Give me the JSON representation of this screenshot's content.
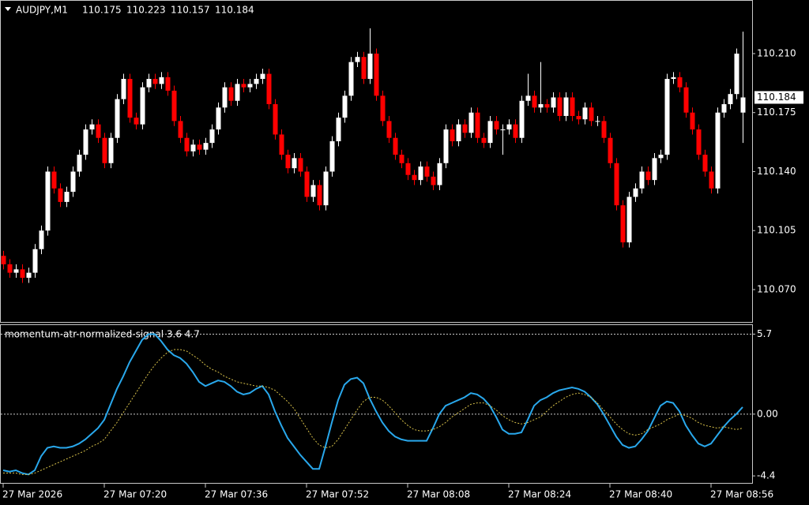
{
  "chart_data": [
    {
      "type": "candlestick",
      "symbol": "AUDJPY,M1",
      "ohlc": [
        110.175,
        110.223,
        110.157,
        110.184
      ],
      "last_price": 110.184,
      "up_color": "#ffffff",
      "down_color": "#ff0000",
      "ylim": [
        110.0508,
        110.2418
      ],
      "yticks": [
        {
          "value": 110.07,
          "label": "110.070"
        },
        110.105,
        {
          "value": 110.14,
          "label": "110.140"
        },
        110.175,
        {
          "value": 110.21,
          "label": "110.210"
        }
      ],
      "xlim": [
        0,
        117
      ],
      "xticks": [
        {
          "value": 0,
          "label": "27 Mar 2026"
        },
        {
          "value": 16,
          "label": "27 Mar 07:20"
        },
        {
          "value": 32,
          "label": "27 Mar 07:36"
        },
        {
          "value": 48,
          "label": "27 Mar 07:52"
        },
        {
          "value": 64,
          "label": "27 Mar 08:08"
        },
        {
          "value": 80,
          "label": "27 Mar 08:24"
        },
        {
          "value": 96,
          "label": "27 Mar 08:40"
        },
        {
          "value": 112,
          "label": "27 Mar 08:56"
        }
      ],
      "candles": [
        [
          110.09,
          110.093,
          110.082,
          110.085
        ],
        [
          110.085,
          110.088,
          110.077,
          110.08
        ],
        [
          110.08,
          110.085,
          110.077,
          110.082
        ],
        [
          110.082,
          110.085,
          110.074,
          110.077
        ],
        [
          110.077,
          110.083,
          110.074,
          110.08
        ],
        [
          110.08,
          110.097,
          110.077,
          110.094
        ],
        [
          110.094,
          110.108,
          110.091,
          110.105
        ],
        [
          110.105,
          110.143,
          110.102,
          110.14
        ],
        [
          110.14,
          110.143,
          110.127,
          110.13
        ],
        [
          110.13,
          110.133,
          110.119,
          110.122
        ],
        [
          110.122,
          110.131,
          110.119,
          110.128
        ],
        [
          110.128,
          110.143,
          110.125,
          110.14
        ],
        [
          110.14,
          110.153,
          110.137,
          110.15
        ],
        [
          110.15,
          110.168,
          110.147,
          110.165
        ],
        [
          110.165,
          110.171,
          110.162,
          110.168
        ],
        [
          110.168,
          110.171,
          110.157,
          110.16
        ],
        [
          110.16,
          110.163,
          110.142,
          110.145
        ],
        [
          110.145,
          110.163,
          110.142,
          110.16
        ],
        [
          110.16,
          110.186,
          110.157,
          110.183
        ],
        [
          110.183,
          110.198,
          110.18,
          110.195
        ],
        [
          110.195,
          110.198,
          110.169,
          110.172
        ],
        [
          110.172,
          110.175,
          110.165,
          110.168
        ],
        [
          110.168,
          110.193,
          110.165,
          110.19
        ],
        [
          110.19,
          110.198,
          110.187,
          110.195
        ],
        [
          110.195,
          110.198,
          110.189,
          110.192
        ],
        [
          110.192,
          110.199,
          110.189,
          110.196
        ],
        [
          110.196,
          110.199,
          110.185,
          110.188
        ],
        [
          110.188,
          110.191,
          110.167,
          110.17
        ],
        [
          110.17,
          110.173,
          110.157,
          110.16
        ],
        [
          110.16,
          110.163,
          110.149,
          110.152
        ],
        [
          110.152,
          110.159,
          110.149,
          110.156
        ],
        [
          110.156,
          110.159,
          110.15,
          110.153
        ],
        [
          110.153,
          110.16,
          110.15,
          110.157
        ],
        [
          110.157,
          110.168,
          110.154,
          110.165
        ],
        [
          110.165,
          110.181,
          110.162,
          110.178
        ],
        [
          110.178,
          110.193,
          110.175,
          110.19
        ],
        [
          110.19,
          110.193,
          110.179,
          110.182
        ],
        [
          110.182,
          110.195,
          110.179,
          110.192
        ],
        [
          110.192,
          110.195,
          110.187,
          110.19
        ],
        [
          110.19,
          110.195,
          110.187,
          110.192
        ],
        [
          110.192,
          110.198,
          110.189,
          110.195
        ],
        [
          110.195,
          110.201,
          110.192,
          110.198
        ],
        [
          110.198,
          110.201,
          110.177,
          110.18
        ],
        [
          110.18,
          110.183,
          110.159,
          110.162
        ],
        [
          110.162,
          110.165,
          110.147,
          110.15
        ],
        [
          110.15,
          110.153,
          110.139,
          110.142
        ],
        [
          110.142,
          110.151,
          110.139,
          110.148
        ],
        [
          110.148,
          110.151,
          110.137,
          110.14
        ],
        [
          110.14,
          110.143,
          110.122,
          110.125
        ],
        [
          110.125,
          110.135,
          110.122,
          110.132
        ],
        [
          110.132,
          110.135,
          110.117,
          110.12
        ],
        [
          110.12,
          110.143,
          110.117,
          110.14
        ],
        [
          110.14,
          110.161,
          110.137,
          110.158
        ],
        [
          110.158,
          110.175,
          110.155,
          110.172
        ],
        [
          110.172,
          110.188,
          110.169,
          110.185
        ],
        [
          110.185,
          110.208,
          110.182,
          110.205
        ],
        [
          110.205,
          110.211,
          110.202,
          110.208
        ],
        [
          110.208,
          110.211,
          110.192,
          110.195
        ],
        [
          110.195,
          110.225,
          110.192,
          110.21
        ],
        [
          110.21,
          110.213,
          110.182,
          110.185
        ],
        [
          110.185,
          110.188,
          110.167,
          110.17
        ],
        [
          110.17,
          110.173,
          110.157,
          110.16
        ],
        [
          110.16,
          110.163,
          110.147,
          110.15
        ],
        [
          110.15,
          110.153,
          110.142,
          110.145
        ],
        [
          110.145,
          110.148,
          110.135,
          110.138
        ],
        [
          110.138,
          110.141,
          110.132,
          110.135
        ],
        [
          110.135,
          110.146,
          110.132,
          110.143
        ],
        [
          110.143,
          110.146,
          110.134,
          110.137
        ],
        [
          110.137,
          110.14,
          110.129,
          110.132
        ],
        [
          110.132,
          110.148,
          110.129,
          110.145
        ],
        [
          110.145,
          110.168,
          110.142,
          110.165
        ],
        [
          110.165,
          110.168,
          110.155,
          110.158
        ],
        [
          110.158,
          110.171,
          110.155,
          110.168
        ],
        [
          110.168,
          110.171,
          110.16,
          110.163
        ],
        [
          110.163,
          110.178,
          110.16,
          110.175
        ],
        [
          110.175,
          110.178,
          110.157,
          110.16
        ],
        [
          110.16,
          110.163,
          110.154,
          110.157
        ],
        [
          110.157,
          110.173,
          110.154,
          110.17
        ],
        [
          110.17,
          110.173,
          110.162,
          110.165
        ],
        [
          110.165,
          110.168,
          110.15,
          110.165
        ],
        [
          110.165,
          110.171,
          110.162,
          110.168
        ],
        [
          110.168,
          110.171,
          110.157,
          110.16
        ],
        [
          110.16,
          110.185,
          110.157,
          110.182
        ],
        [
          110.182,
          110.198,
          110.179,
          110.185
        ],
        [
          110.185,
          110.188,
          110.175,
          110.178
        ],
        [
          110.178,
          110.205,
          110.175,
          110.18
        ],
        [
          110.18,
          110.183,
          110.175,
          110.178
        ],
        [
          110.178,
          110.187,
          110.175,
          110.184
        ],
        [
          110.184,
          110.187,
          110.17,
          110.173
        ],
        [
          110.173,
          110.187,
          110.17,
          110.184
        ],
        [
          110.184,
          110.187,
          110.17,
          110.173
        ],
        [
          110.173,
          110.176,
          110.168,
          110.171
        ],
        [
          110.171,
          110.181,
          110.168,
          110.178
        ],
        [
          110.178,
          110.181,
          110.167,
          110.17
        ],
        [
          110.17,
          110.173,
          110.167,
          110.17
        ],
        [
          110.17,
          110.173,
          110.157,
          110.16
        ],
        [
          110.16,
          110.163,
          110.142,
          110.145
        ],
        [
          110.145,
          110.148,
          110.117,
          110.12
        ],
        [
          110.12,
          110.123,
          110.095,
          110.098
        ],
        [
          110.098,
          110.128,
          110.095,
          110.125
        ],
        [
          110.125,
          110.133,
          110.122,
          110.13
        ],
        [
          110.13,
          110.143,
          110.127,
          110.14
        ],
        [
          110.14,
          110.143,
          110.132,
          110.135
        ],
        [
          110.135,
          110.151,
          110.132,
          110.148
        ],
        [
          110.148,
          110.153,
          110.145,
          110.15
        ],
        [
          110.15,
          110.198,
          110.147,
          110.195
        ],
        [
          110.195,
          110.199,
          110.192,
          110.196
        ],
        [
          110.196,
          110.199,
          110.187,
          110.19
        ],
        [
          110.19,
          110.193,
          110.172,
          110.175
        ],
        [
          110.175,
          110.178,
          110.162,
          110.165
        ],
        [
          110.165,
          110.168,
          110.147,
          110.15
        ],
        [
          110.15,
          110.153,
          110.137,
          110.14
        ],
        [
          110.14,
          110.143,
          110.127,
          110.13
        ],
        [
          110.13,
          110.178,
          110.127,
          110.175
        ],
        [
          110.175,
          110.183,
          110.172,
          110.18
        ],
        [
          110.18,
          110.189,
          110.177,
          110.186
        ],
        [
          110.186,
          110.213,
          110.183,
          110.21
        ],
        [
          110.175,
          110.223,
          110.157,
          110.184
        ]
      ]
    },
    {
      "type": "line",
      "title": "momentum-atr-normalized-signal 3.6 4.7",
      "ylim": [
        -4.9,
        6.4
      ],
      "yticks": [
        5.7,
        {
          "value": 0,
          "label": "0.00"
        },
        -4.4
      ],
      "levels": [
        5.7,
        0
      ],
      "series": [
        {
          "color": "#29a8ec",
          "style": "solid",
          "values": [
            -4.0,
            -4.1,
            -4.0,
            -4.2,
            -4.3,
            -4.0,
            -3.0,
            -2.4,
            -2.3,
            -2.4,
            -2.4,
            -2.3,
            -2.1,
            -1.8,
            -1.4,
            -1.0,
            -0.4,
            0.7,
            1.8,
            2.7,
            3.7,
            4.5,
            5.3,
            5.7,
            5.7,
            5.2,
            4.6,
            4.2,
            4.0,
            3.6,
            3.0,
            2.3,
            2.0,
            2.2,
            2.4,
            2.3,
            2.0,
            1.6,
            1.4,
            1.5,
            1.8,
            2.0,
            1.4,
            0.2,
            -0.8,
            -1.7,
            -2.3,
            -2.9,
            -3.4,
            -3.9,
            -3.9,
            -2.3,
            -0.6,
            1.0,
            2.1,
            2.5,
            2.6,
            2.2,
            1.1,
            0.2,
            -0.6,
            -1.2,
            -1.6,
            -1.8,
            -1.9,
            -1.9,
            -1.9,
            -1.9,
            -1.0,
            0.0,
            0.6,
            0.8,
            1.0,
            1.2,
            1.5,
            1.4,
            1.1,
            0.6,
            -0.2,
            -1.1,
            -1.4,
            -1.4,
            -1.3,
            -0.4,
            0.6,
            1.0,
            1.2,
            1.5,
            1.7,
            1.8,
            1.9,
            1.8,
            1.6,
            1.2,
            0.7,
            0.0,
            -0.8,
            -1.6,
            -2.2,
            -2.4,
            -2.3,
            -1.8,
            -1.2,
            -0.3,
            0.6,
            0.9,
            0.8,
            0.2,
            -0.8,
            -1.5,
            -2.1,
            -2.3,
            -2.1,
            -1.5,
            -0.9,
            -0.4,
            0.0,
            0.5
          ]
        },
        {
          "color": "#d9c24a",
          "style": "dotted",
          "values": [
            -4.2,
            -4.2,
            -4.2,
            -4.3,
            -4.3,
            -4.2,
            -4.0,
            -3.8,
            -3.6,
            -3.4,
            -3.2,
            -3.0,
            -2.8,
            -2.6,
            -2.3,
            -2.1,
            -1.8,
            -1.2,
            -0.6,
            0.1,
            0.8,
            1.5,
            2.2,
            2.9,
            3.5,
            4.0,
            4.4,
            4.6,
            4.6,
            4.5,
            4.2,
            3.9,
            3.5,
            3.2,
            3.0,
            2.7,
            2.5,
            2.3,
            2.2,
            2.1,
            2.0,
            2.0,
            1.9,
            1.7,
            1.3,
            0.9,
            0.4,
            -0.3,
            -1.0,
            -1.7,
            -2.2,
            -2.4,
            -2.3,
            -1.8,
            -1.1,
            -0.4,
            0.3,
            0.9,
            1.2,
            1.2,
            1.0,
            0.6,
            0.1,
            -0.4,
            -0.8,
            -1.1,
            -1.2,
            -1.2,
            -1.1,
            -0.9,
            -0.6,
            -0.2,
            0.1,
            0.4,
            0.7,
            0.8,
            0.8,
            0.6,
            0.3,
            -0.1,
            -0.4,
            -0.6,
            -0.7,
            -0.6,
            -0.4,
            -0.2,
            0.2,
            0.6,
            0.9,
            1.2,
            1.4,
            1.5,
            1.4,
            1.2,
            0.8,
            0.3,
            -0.2,
            -0.7,
            -1.1,
            -1.4,
            -1.5,
            -1.4,
            -1.1,
            -0.9,
            -0.7,
            -0.4,
            -0.2,
            0.0,
            -0.1,
            -0.3,
            -0.6,
            -0.8,
            -0.9,
            -1.0,
            -0.9,
            -1.0,
            -1.1,
            -1.0
          ]
        }
      ]
    }
  ]
}
